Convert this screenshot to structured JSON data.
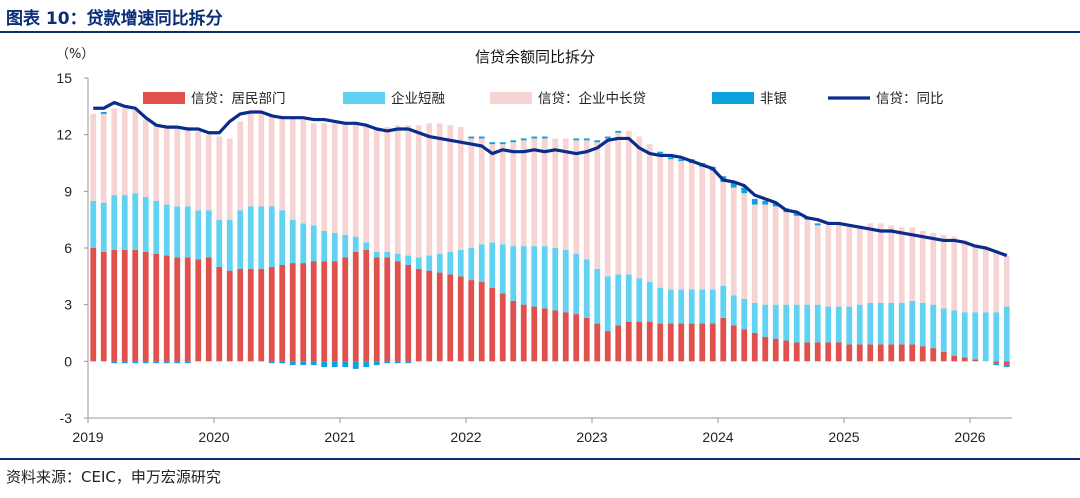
{
  "figure": {
    "title": "图表 10：贷款增速同比拆分",
    "source": "资料来源：CEIC，申万宏源研究"
  },
  "colors": {
    "household": "#e0504c",
    "corp_short": "#62d2f2",
    "corp_long": "#f6d4d4",
    "nonbank": "#0ea1df",
    "total_line": "#0a2d8c",
    "brand": "#0a2d78"
  },
  "chart_data": {
    "type": "bar",
    "stacked": true,
    "title": "信贷余额同比拆分",
    "unit_label": "（%）",
    "ylim": [
      -3,
      15
    ],
    "y_ticks": [
      "15",
      "12",
      "9",
      "6",
      "3",
      "0",
      "-3"
    ],
    "y_tick_values": [
      15,
      12,
      9,
      6,
      3,
      0,
      -3
    ],
    "x_ticks": [
      "2019",
      "2020",
      "2021",
      "2022",
      "2023",
      "2024",
      "2025",
      "2026"
    ],
    "x_tick_index": [
      0,
      12,
      24,
      36,
      48,
      60,
      72,
      84
    ],
    "legend": [
      "信贷：居民部门",
      "企业短融",
      "信贷：企业中长贷",
      "非银",
      "信贷：同比"
    ],
    "legend_position": "top",
    "grid": false,
    "series": [
      {
        "name": "信贷：居民部门",
        "kind": "bar",
        "values": [
          6.0,
          5.8,
          5.9,
          5.9,
          5.9,
          5.8,
          5.7,
          5.6,
          5.5,
          5.5,
          5.4,
          5.5,
          5.0,
          4.8,
          4.9,
          4.9,
          4.9,
          5.0,
          5.1,
          5.2,
          5.2,
          5.3,
          5.3,
          5.3,
          5.5,
          5.8,
          5.9,
          5.5,
          5.5,
          5.3,
          5.1,
          4.9,
          4.8,
          4.7,
          4.6,
          4.5,
          4.3,
          4.2,
          3.9,
          3.6,
          3.2,
          3.0,
          2.9,
          2.8,
          2.7,
          2.6,
          2.5,
          2.3,
          2.0,
          1.6,
          1.9,
          2.1,
          2.1,
          2.1,
          2.0,
          2.0,
          2.0,
          2.0,
          2.0,
          2.0,
          2.3,
          1.9,
          1.7,
          1.5,
          1.3,
          1.2,
          1.1,
          1.0,
          1.0,
          1.0,
          1.0,
          1.0,
          0.9,
          0.9,
          0.9,
          0.9,
          0.9,
          0.9,
          0.9,
          0.8,
          0.7,
          0.5,
          0.3,
          0.2,
          0.1,
          0.0,
          -0.1,
          -0.2
        ]
      },
      {
        "name": "企业短融",
        "kind": "bar",
        "values": [
          2.5,
          2.6,
          2.9,
          2.9,
          3.0,
          2.9,
          2.8,
          2.7,
          2.7,
          2.7,
          2.6,
          2.5,
          2.5,
          2.7,
          3.1,
          3.3,
          3.3,
          3.2,
          2.9,
          2.3,
          2.1,
          1.9,
          1.6,
          1.5,
          1.2,
          0.8,
          0.4,
          0.3,
          0.3,
          0.4,
          0.5,
          0.6,
          0.8,
          1.0,
          1.2,
          1.4,
          1.7,
          2.0,
          2.4,
          2.6,
          2.9,
          3.1,
          3.2,
          3.3,
          3.3,
          3.3,
          3.2,
          3.1,
          2.9,
          2.9,
          2.7,
          2.5,
          2.3,
          2.1,
          1.9,
          1.8,
          1.8,
          1.8,
          1.8,
          1.8,
          1.7,
          1.6,
          1.6,
          1.6,
          1.7,
          1.8,
          1.9,
          2.0,
          2.0,
          2.0,
          1.9,
          1.9,
          2.0,
          2.1,
          2.2,
          2.2,
          2.2,
          2.2,
          2.3,
          2.3,
          2.3,
          2.3,
          2.4,
          2.4,
          2.5,
          2.6,
          2.6,
          2.9
        ]
      },
      {
        "name": "信贷：企业中长贷",
        "kind": "bar",
        "values": [
          4.6,
          4.7,
          4.6,
          4.6,
          4.4,
          4.1,
          4.0,
          4.1,
          4.2,
          4.2,
          4.2,
          4.0,
          4.4,
          4.3,
          4.7,
          4.9,
          5.0,
          4.8,
          5.0,
          5.4,
          5.5,
          5.4,
          5.7,
          5.8,
          6.0,
          6.1,
          6.3,
          6.6,
          6.6,
          6.8,
          6.9,
          7.0,
          7.0,
          6.9,
          6.7,
          6.5,
          5.8,
          5.6,
          5.2,
          5.3,
          5.5,
          5.6,
          5.7,
          5.7,
          5.8,
          5.9,
          6.0,
          6.3,
          6.7,
          7.3,
          7.5,
          7.6,
          7.5,
          7.3,
          7.1,
          6.9,
          6.8,
          6.7,
          6.5,
          6.3,
          5.5,
          5.7,
          5.6,
          5.2,
          5.3,
          5.2,
          4.9,
          4.7,
          4.5,
          4.2,
          4.3,
          4.4,
          4.3,
          4.2,
          4.2,
          4.2,
          4.1,
          4.0,
          3.9,
          3.8,
          3.8,
          3.9,
          3.9,
          3.8,
          3.6,
          3.5,
          3.2,
          2.7
        ]
      },
      {
        "name": "非银",
        "kind": "bar",
        "values": [
          0.0,
          0.1,
          -0.1,
          -0.1,
          -0.1,
          -0.1,
          -0.1,
          -0.1,
          -0.1,
          -0.1,
          0.0,
          0.0,
          0.0,
          0.0,
          0.0,
          0.0,
          0.0,
          -0.1,
          -0.1,
          -0.2,
          -0.2,
          -0.2,
          -0.3,
          -0.3,
          -0.3,
          -0.4,
          -0.3,
          -0.2,
          -0.1,
          -0.1,
          -0.1,
          0.0,
          0.0,
          0.0,
          0.0,
          0.0,
          0.1,
          0.1,
          0.1,
          0.1,
          0.1,
          0.1,
          0.1,
          0.1,
          0.0,
          0.0,
          0.1,
          0.1,
          0.1,
          0.1,
          0.1,
          0.0,
          0.0,
          0.0,
          0.1,
          0.1,
          0.1,
          0.2,
          0.2,
          0.2,
          0.3,
          0.3,
          0.3,
          0.3,
          0.2,
          0.2,
          0.2,
          0.2,
          0.1,
          0.1,
          0.0,
          0.0,
          0.0,
          0.0,
          0.0,
          0.0,
          0.0,
          0.0,
          0.0,
          0.0,
          0.0,
          0.0,
          0.0,
          0.0,
          0.0,
          0.0,
          -0.1,
          -0.1
        ]
      },
      {
        "name": "信贷：同比",
        "kind": "line",
        "values": [
          13.4,
          13.4,
          13.7,
          13.5,
          13.4,
          12.9,
          12.5,
          12.4,
          12.4,
          12.3,
          12.3,
          12.1,
          12.1,
          12.7,
          13.1,
          13.2,
          13.2,
          13.0,
          12.9,
          12.9,
          12.9,
          12.8,
          12.8,
          12.7,
          12.6,
          12.6,
          12.5,
          12.3,
          12.2,
          12.3,
          12.3,
          12.1,
          11.9,
          11.8,
          11.7,
          11.6,
          11.5,
          11.4,
          11.0,
          11.2,
          11.1,
          11.1,
          11.2,
          11.1,
          11.2,
          11.1,
          11.0,
          11.1,
          11.3,
          11.7,
          11.8,
          11.8,
          11.3,
          11.0,
          10.9,
          10.9,
          10.8,
          10.6,
          10.4,
          10.2,
          9.6,
          9.5,
          9.3,
          8.8,
          8.6,
          8.4,
          8.0,
          7.9,
          7.6,
          7.5,
          7.3,
          7.3,
          7.2,
          7.1,
          7.0,
          6.9,
          6.9,
          6.8,
          6.7,
          6.6,
          6.5,
          6.4,
          6.4,
          6.3,
          6.1,
          6.0,
          5.8,
          5.6
        ]
      }
    ]
  }
}
